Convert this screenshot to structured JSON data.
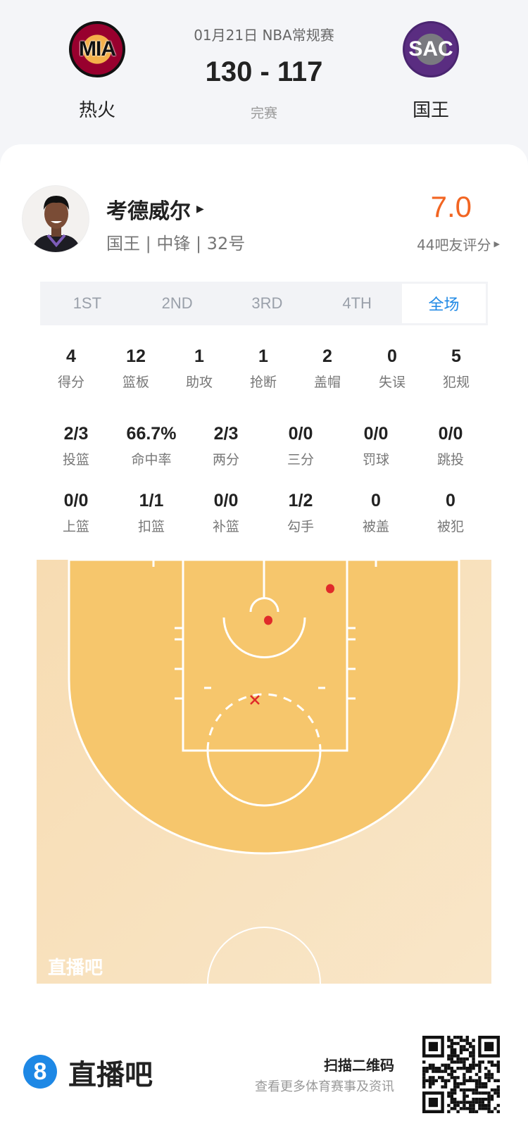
{
  "game": {
    "date_league": "01月21日 NBA常规赛",
    "score": "130 - 117",
    "status": "完赛",
    "home": {
      "abbr": "MIA",
      "name": "热火"
    },
    "away": {
      "abbr": "SAC",
      "name": "国王"
    }
  },
  "player": {
    "name": "考德威尔",
    "info": "国王 | 中锋 | 32号",
    "rating": "7.0",
    "rating_label": "44吧友评分",
    "rating_color": "#f26522"
  },
  "tabs": [
    {
      "label": "1ST"
    },
    {
      "label": "2ND"
    },
    {
      "label": "3RD"
    },
    {
      "label": "4TH"
    },
    {
      "label": "全场",
      "active": true
    }
  ],
  "stats_row1": [
    {
      "v": "4",
      "l": "得分"
    },
    {
      "v": "12",
      "l": "篮板"
    },
    {
      "v": "1",
      "l": "助攻"
    },
    {
      "v": "1",
      "l": "抢断"
    },
    {
      "v": "2",
      "l": "盖帽"
    },
    {
      "v": "0",
      "l": "失误"
    },
    {
      "v": "5",
      "l": "犯规"
    }
  ],
  "stats_row2": [
    {
      "v": "2/3",
      "l": "投篮"
    },
    {
      "v": "66.7%",
      "l": "命中率"
    },
    {
      "v": "2/3",
      "l": "两分"
    },
    {
      "v": "0/0",
      "l": "三分"
    },
    {
      "v": "0/0",
      "l": "罚球"
    },
    {
      "v": "0/0",
      "l": "跳投"
    }
  ],
  "stats_row3": [
    {
      "v": "0/0",
      "l": "上篮"
    },
    {
      "v": "1/1",
      "l": "扣篮"
    },
    {
      "v": "0/0",
      "l": "补篮"
    },
    {
      "v": "1/2",
      "l": "勾手"
    },
    {
      "v": "0",
      "l": "被盖"
    },
    {
      "v": "0",
      "l": "被犯"
    }
  ],
  "shot_chart": {
    "made": 2,
    "missed": 1,
    "watermark": "直播吧",
    "made_color": "#e02a2a"
  },
  "footer": {
    "brand": "直播吧",
    "brand_icon": "8",
    "scan_title": "扫描二维码",
    "scan_sub": "查看更多体育赛事及资讯",
    "accent": "#1e88e5"
  }
}
